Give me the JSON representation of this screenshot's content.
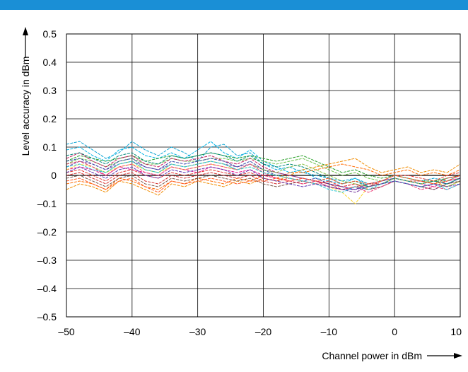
{
  "header": {
    "bar_color": "#1a8fd6"
  },
  "chart_data": {
    "type": "line",
    "title": "",
    "xlabel": "Channel power in dBm",
    "ylabel": "Level accuracy in dBm",
    "xlim": [
      -50,
      10
    ],
    "ylim": [
      -0.5,
      0.5
    ],
    "x_ticks": [
      -50,
      -40,
      -30,
      -20,
      -10,
      0,
      10
    ],
    "y_ticks": [
      -0.5,
      -0.4,
      -0.3,
      -0.2,
      -0.1,
      0,
      0.1,
      0.2,
      0.3,
      0.4,
      0.5
    ],
    "x_tick_labels": [
      "–50",
      "–40",
      "–30",
      "–20",
      "–10",
      "0",
      "10"
    ],
    "y_tick_labels": [
      "–0.5",
      "–0.4",
      "–0.3",
      "–0.2",
      "–0.1",
      "0",
      "0.1",
      "0.2",
      "0.3",
      "0.4",
      "0.5"
    ],
    "grid": true,
    "x": [
      -50,
      -48,
      -46,
      -44,
      -42,
      -40,
      -38,
      -36,
      -34,
      -32,
      -30,
      -28,
      -26,
      -24,
      -22,
      -20,
      -18,
      -16,
      -14,
      -12,
      -10,
      -8,
      -6,
      -4,
      -2,
      0,
      2,
      4,
      6,
      8,
      10
    ],
    "series": [
      {
        "color": "#00a0d2",
        "values": [
          0.11,
          0.12,
          0.09,
          0.06,
          0.08,
          0.12,
          0.09,
          0.07,
          0.1,
          0.08,
          0.05,
          0.1,
          0.11,
          0.07,
          0.08,
          0.04,
          0.02,
          0.03,
          0.01,
          0.0,
          -0.01,
          -0.02,
          -0.01,
          -0.03,
          -0.02,
          0.0,
          -0.01,
          -0.02,
          -0.01,
          -0.02,
          0.0
        ]
      },
      {
        "color": "#00b4e6",
        "values": [
          0.09,
          0.1,
          0.07,
          0.05,
          0.09,
          0.1,
          0.07,
          0.06,
          0.08,
          0.06,
          0.09,
          0.12,
          0.08,
          0.06,
          0.09,
          0.05,
          0.03,
          0.01,
          0.02,
          -0.01,
          -0.02,
          -0.03,
          -0.01,
          -0.04,
          -0.03,
          -0.01,
          -0.02,
          -0.03,
          -0.02,
          -0.03,
          -0.01
        ]
      },
      {
        "color": "#2aa02a",
        "values": [
          0.05,
          0.07,
          0.06,
          0.05,
          0.06,
          0.07,
          0.05,
          0.06,
          0.07,
          0.06,
          0.07,
          0.08,
          0.07,
          0.06,
          0.07,
          0.06,
          0.05,
          0.06,
          0.07,
          0.05,
          0.03,
          0.01,
          0.02,
          0.0,
          -0.01,
          0.0,
          -0.01,
          -0.02,
          -0.02,
          -0.01,
          0.0
        ]
      },
      {
        "color": "#6cc04a",
        "values": [
          0.04,
          0.06,
          0.05,
          0.03,
          0.05,
          0.06,
          0.04,
          0.04,
          0.06,
          0.05,
          0.05,
          0.06,
          0.06,
          0.05,
          0.06,
          0.05,
          0.04,
          0.05,
          0.06,
          0.04,
          0.02,
          0.0,
          0.01,
          -0.01,
          -0.02,
          -0.01,
          -0.02,
          -0.03,
          -0.02,
          -0.02,
          -0.01
        ]
      },
      {
        "color": "#f08c00",
        "values": [
          -0.05,
          -0.03,
          -0.04,
          -0.06,
          -0.02,
          -0.03,
          -0.05,
          -0.07,
          -0.03,
          -0.04,
          -0.02,
          -0.03,
          -0.04,
          -0.02,
          -0.03,
          -0.01,
          -0.02,
          0.0,
          0.02,
          0.03,
          0.04,
          0.05,
          0.06,
          0.03,
          0.01,
          0.02,
          0.03,
          0.01,
          0.02,
          0.01,
          0.04
        ]
      },
      {
        "color": "#ff6a00",
        "values": [
          -0.03,
          -0.02,
          -0.03,
          -0.05,
          -0.01,
          -0.02,
          -0.04,
          -0.05,
          -0.02,
          -0.03,
          -0.01,
          -0.02,
          -0.03,
          -0.01,
          -0.02,
          0.0,
          -0.01,
          0.01,
          0.01,
          0.02,
          0.03,
          0.04,
          0.03,
          0.02,
          0.0,
          0.01,
          0.02,
          0.0,
          0.01,
          0.0,
          0.02
        ]
      },
      {
        "color": "#e8128c",
        "values": [
          0.02,
          0.03,
          0.02,
          0.0,
          0.03,
          0.02,
          0.01,
          0.0,
          0.03,
          0.02,
          0.01,
          0.03,
          0.02,
          0.01,
          0.02,
          0.0,
          -0.01,
          -0.02,
          -0.01,
          -0.02,
          -0.03,
          -0.04,
          -0.05,
          -0.03,
          -0.02,
          -0.01,
          -0.02,
          -0.03,
          -0.04,
          -0.02,
          -0.01
        ]
      },
      {
        "color": "#c2185b",
        "values": [
          0.06,
          0.08,
          0.05,
          0.03,
          0.06,
          0.07,
          0.04,
          0.03,
          0.06,
          0.05,
          0.06,
          0.07,
          0.05,
          0.04,
          0.06,
          0.03,
          0.01,
          0.0,
          -0.01,
          -0.02,
          -0.03,
          -0.04,
          -0.03,
          -0.05,
          -0.04,
          -0.02,
          -0.03,
          -0.04,
          -0.03,
          -0.04,
          -0.02
        ]
      },
      {
        "color": "#e53935",
        "values": [
          0.01,
          0.02,
          0.0,
          -0.02,
          0.01,
          0.02,
          0.0,
          -0.01,
          0.01,
          0.0,
          0.01,
          0.02,
          0.01,
          0.0,
          0.01,
          -0.01,
          -0.02,
          -0.01,
          -0.02,
          -0.03,
          -0.02,
          -0.04,
          -0.03,
          -0.04,
          -0.02,
          0.0,
          0.0,
          -0.01,
          -0.02,
          0.0,
          0.01
        ]
      },
      {
        "color": "#d32f2f",
        "values": [
          0.0,
          0.01,
          -0.01,
          -0.03,
          0.0,
          0.01,
          -0.02,
          -0.03,
          0.0,
          -0.01,
          0.0,
          0.01,
          0.0,
          -0.01,
          0.0,
          -0.02,
          -0.03,
          -0.02,
          -0.03,
          -0.02,
          -0.03,
          -0.05,
          -0.04,
          -0.03,
          -0.03,
          -0.01,
          -0.02,
          -0.02,
          -0.03,
          -0.01,
          0.0
        ]
      },
      {
        "color": "#7b3fa0",
        "values": [
          0.03,
          0.05,
          0.04,
          0.02,
          0.04,
          0.05,
          0.03,
          0.02,
          0.04,
          0.03,
          0.04,
          0.05,
          0.04,
          0.03,
          0.04,
          0.02,
          0.01,
          0.0,
          -0.01,
          -0.02,
          -0.04,
          -0.05,
          -0.06,
          -0.04,
          -0.03,
          -0.02,
          -0.03,
          -0.04,
          -0.05,
          -0.03,
          -0.02
        ]
      },
      {
        "color": "#3949ab",
        "values": [
          0.05,
          0.06,
          0.04,
          0.02,
          0.05,
          0.06,
          0.03,
          0.02,
          0.05,
          0.04,
          0.05,
          0.06,
          0.05,
          0.03,
          0.05,
          0.02,
          0.0,
          -0.01,
          -0.02,
          -0.01,
          -0.03,
          -0.04,
          -0.05,
          -0.03,
          -0.02,
          -0.01,
          -0.02,
          -0.03,
          -0.02,
          -0.03,
          -0.01
        ]
      },
      {
        "color": "#fdd835",
        "values": [
          0.02,
          0.04,
          0.03,
          0.01,
          0.03,
          0.04,
          0.02,
          0.01,
          0.03,
          0.02,
          0.03,
          0.04,
          0.03,
          0.02,
          0.03,
          0.01,
          0.0,
          -0.01,
          -0.02,
          -0.03,
          -0.04,
          -0.06,
          -0.1,
          -0.04,
          -0.03,
          -0.01,
          -0.02,
          -0.03,
          -0.02,
          -0.04,
          -0.02
        ]
      },
      {
        "color": "#8bc34a",
        "values": [
          0.04,
          0.05,
          0.03,
          0.01,
          0.04,
          0.05,
          0.02,
          0.01,
          0.04,
          0.03,
          0.04,
          0.05,
          0.04,
          0.02,
          0.04,
          0.02,
          0.01,
          0.03,
          0.04,
          0.02,
          0.0,
          -0.02,
          -0.03,
          -0.04,
          -0.03,
          -0.02,
          -0.03,
          -0.04,
          -0.03,
          -0.04,
          -0.02
        ]
      },
      {
        "color": "#795548",
        "values": [
          -0.01,
          0.0,
          -0.02,
          -0.04,
          -0.01,
          0.0,
          -0.03,
          -0.04,
          -0.01,
          -0.02,
          -0.01,
          0.0,
          -0.01,
          -0.02,
          -0.01,
          -0.03,
          -0.04,
          -0.03,
          -0.02,
          -0.03,
          -0.04,
          -0.05,
          -0.04,
          -0.05,
          -0.04,
          -0.02,
          -0.03,
          -0.04,
          -0.05,
          -0.03,
          -0.02
        ]
      },
      {
        "color": "#00897b",
        "values": [
          0.07,
          0.08,
          0.06,
          0.04,
          0.07,
          0.08,
          0.05,
          0.04,
          0.07,
          0.06,
          0.07,
          0.08,
          0.07,
          0.05,
          0.07,
          0.04,
          0.03,
          0.04,
          0.03,
          0.01,
          -0.01,
          -0.03,
          -0.02,
          -0.04,
          -0.03,
          -0.01,
          -0.02,
          -0.03,
          -0.02,
          -0.03,
          -0.01
        ]
      },
      {
        "color": "#ec407a",
        "values": [
          0.04,
          0.05,
          0.03,
          0.0,
          0.03,
          0.04,
          0.01,
          0.0,
          0.03,
          0.02,
          0.03,
          0.04,
          0.03,
          0.02,
          0.04,
          0.01,
          -0.01,
          -0.02,
          -0.03,
          -0.02,
          -0.04,
          -0.05,
          -0.04,
          -0.06,
          -0.04,
          -0.02,
          -0.03,
          -0.05,
          -0.04,
          -0.05,
          -0.03
        ]
      },
      {
        "color": "#26c6da",
        "values": [
          0.03,
          0.04,
          0.02,
          0.01,
          0.04,
          0.05,
          0.02,
          0.01,
          0.04,
          0.03,
          0.04,
          0.05,
          0.04,
          0.02,
          0.03,
          0.01,
          0.0,
          -0.01,
          -0.02,
          -0.03,
          -0.05,
          -0.06,
          -0.04,
          -0.05,
          -0.03,
          -0.02,
          -0.03,
          -0.04,
          -0.03,
          -0.05,
          -0.03
        ]
      },
      {
        "color": "#ff5722",
        "values": [
          -0.02,
          -0.01,
          -0.03,
          -0.05,
          -0.02,
          -0.01,
          -0.04,
          -0.06,
          -0.02,
          -0.03,
          -0.02,
          -0.01,
          -0.02,
          -0.03,
          -0.02,
          -0.02,
          -0.01,
          -0.02,
          -0.01,
          -0.02,
          -0.01,
          -0.03,
          -0.02,
          -0.03,
          -0.02,
          0.0,
          -0.01,
          -0.02,
          -0.03,
          -0.02,
          0.0
        ]
      },
      {
        "color": "#5e35b1",
        "values": [
          0.01,
          0.03,
          0.01,
          -0.01,
          0.02,
          0.03,
          0.0,
          -0.01,
          0.02,
          0.01,
          0.02,
          0.03,
          0.02,
          0.0,
          0.02,
          -0.01,
          -0.02,
          -0.03,
          -0.04,
          -0.03,
          -0.04,
          -0.05,
          -0.05,
          -0.04,
          -0.03,
          -0.02,
          -0.03,
          -0.04,
          -0.03,
          -0.04,
          -0.03
        ]
      }
    ]
  }
}
